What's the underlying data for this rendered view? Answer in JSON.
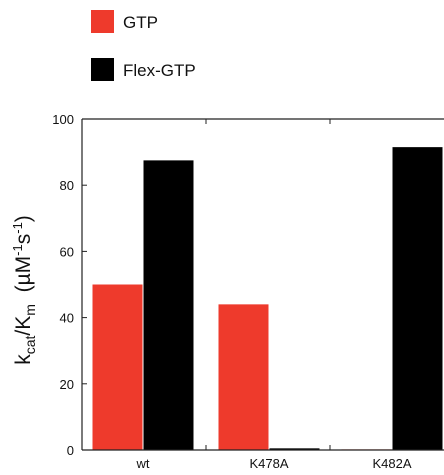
{
  "chart_data": {
    "type": "bar",
    "categories": [
      "wt",
      "K478A",
      "K482A"
    ],
    "series": [
      {
        "name": "GTP",
        "color": "#ee3a2c",
        "values": [
          50,
          44,
          0
        ]
      },
      {
        "name": "Flex-GTP",
        "color": "#000000",
        "values": [
          87.5,
          0.5,
          91.5
        ]
      }
    ],
    "ylabel": {
      "k": "k",
      "cat": "cat",
      "slash": "/K",
      "m": "m",
      "units_open": "  (µM",
      "exp1": "-1",
      "s": "s",
      "exp2": "-1",
      "units_close": ")"
    },
    "ylim": [
      0,
      100
    ],
    "yticks": [
      0,
      20,
      40,
      60,
      80,
      100
    ],
    "grid": false,
    "legend_position": "top-left"
  }
}
